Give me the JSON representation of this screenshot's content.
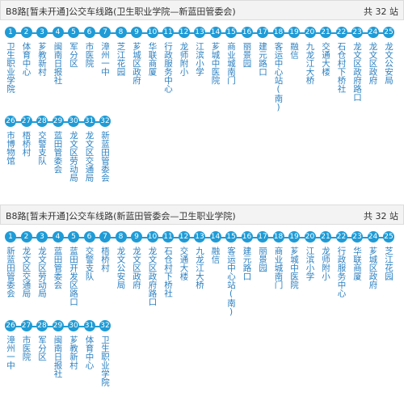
{
  "panels": [
    {
      "title": "B8路[暂未开通]公交车线路(卫生职业学院—新蓝田管委会)",
      "count": "共 32 站",
      "stops": [
        "卫生职业学院",
        "体育中心",
        "芗教新村",
        "闽南日报社",
        "军分区",
        "市医院",
        "漳州一中",
        "芝江花园",
        "芗城区政府",
        "华联商厦",
        "行政服务中心",
        "龙师附小",
        "江滨小学",
        "芗城中医院",
        "商业城南门",
        "丽景园",
        "建元路口",
        "客运中心站(南)",
        "融信",
        "九龙江大桥",
        "交通大楼",
        "石仓村下桥社",
        "龙文区政府路口",
        "龙文区政府",
        "龙文公安局",
        "市博物馆",
        "梧桥村",
        "交警支队",
        "蓝田管委会",
        "龙文区劳动局",
        "龙文区交通局",
        "新蓝田管委会"
      ]
    },
    {
      "title": "B8路[暂未开通]公交车线路(新蓝田管委会—卫生职业学院)",
      "count": "共 32 站",
      "stops": [
        "新蓝田管委会",
        "龙文区交通局",
        "龙文区劳动局",
        "蓝田管委会",
        "蓝田开发区路口",
        "交警支队",
        "梧桥村",
        "龙文公安局",
        "龙文区政府",
        "龙文区政府路口",
        "石仓村下桥社",
        "交通大楼",
        "九龙江大桥",
        "融信",
        "客运中心站(南)",
        "建元路口",
        "丽景园",
        "商业城南门",
        "芗城中医院",
        "江滨小学",
        "龙师附小",
        "行政服务中心",
        "华联商厦",
        "芗城区政府",
        "芝江花园",
        "漳州一中",
        "市医院",
        "军分区",
        "闽南日报社",
        "芗教新村",
        "体育中心",
        "卫生职业学院"
      ]
    }
  ],
  "colors": {
    "accent": "#1f9bd6",
    "stop_text": "#2a7fc0",
    "header_bg": "#f3f3f3"
  }
}
